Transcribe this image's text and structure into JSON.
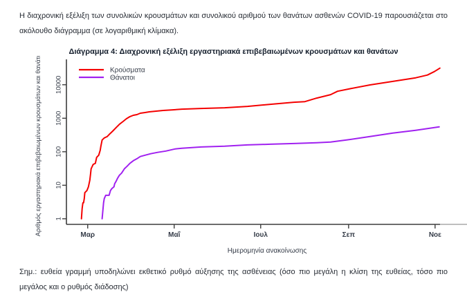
{
  "document": {
    "intro_paragraph": "Η διαχρονική εξέλιξη των συνολικών κρουσμάτων και συνολικού αριθμού των θανάτων ασθενών COVID-19 παρουσιάζεται στο ακόλουθο διάγραμμα (σε λογαριθμική κλίμακα).",
    "figure_title": "Διάγραμμα 4: Διαχρονική εξέλιξη εργαστηριακά επιβεβαιωμένων κρουσμάτων και θανάτων",
    "footnote": "Σημ.: ευθεία γραμμή υποδηλώνει εκθετικό ρυθμό αύξησης της ασθένειας (όσο πιο μεγάλη η κλίση της ευθείας, τόσο πιο μεγάλος και ο ρυθμός διάδοσης)"
  },
  "chart_data": {
    "type": "line",
    "y_scale": "log10",
    "xlabel": "Ημερομηνία ανακοίνωσης",
    "ylabel": "Αριθμός εργαστηριακά επιβεβαιωμένων κρουσμάτων και θανάτων",
    "x_unit": "days_since_1_Mar_2020",
    "xlim": [
      -15,
      268
    ],
    "ylim": [
      0.68,
      52000
    ],
    "grid": false,
    "legend_position": "top-left",
    "x_ticks": [
      {
        "d": 0,
        "label": "Μαρ"
      },
      {
        "d": 61,
        "label": "Μαΐ"
      },
      {
        "d": 122,
        "label": "Ιουλ"
      },
      {
        "d": 184,
        "label": "Σεπ"
      },
      {
        "d": 245,
        "label": "Νοε"
      }
    ],
    "y_ticks": [
      1,
      10,
      100,
      1000,
      10000
    ],
    "colors": {
      "cases": "#f40000",
      "deaths": "#a020f0",
      "axis": "#3c3c3c",
      "axis_tail": "#a8a8a8",
      "chart_text": "#343b47"
    },
    "series": [
      {
        "id": "cases",
        "name": "Κρούσματα",
        "color": "#f40000",
        "points": [
          [
            -4.4,
            1
          ],
          [
            -3.9,
            2
          ],
          [
            -3.4,
            3
          ],
          [
            -2.9,
            3
          ],
          [
            -2.4,
            4
          ],
          [
            -2,
            6
          ],
          [
            -0.5,
            7
          ],
          [
            0.5,
            9
          ],
          [
            1.5,
            14
          ],
          [
            2,
            21
          ],
          [
            2.4,
            31
          ],
          [
            3.9,
            42
          ],
          [
            5.4,
            45
          ],
          [
            6.3,
            68
          ],
          [
            7.8,
            79
          ],
          [
            8.8,
            110
          ],
          [
            9.3,
            146
          ],
          [
            10.2,
            224
          ],
          [
            11.7,
            258
          ],
          [
            13.7,
            283
          ],
          [
            15.1,
            326
          ],
          [
            17.6,
            412
          ],
          [
            20,
            523
          ],
          [
            22.4,
            663
          ],
          [
            24.9,
            800
          ],
          [
            27.3,
            966
          ],
          [
            29.8,
            1117
          ],
          [
            32.2,
            1228
          ],
          [
            34.7,
            1287
          ],
          [
            37.1,
            1415
          ],
          [
            40.5,
            1482
          ],
          [
            43.4,
            1553
          ],
          [
            48.3,
            1627
          ],
          [
            53.2,
            1705
          ],
          [
            60,
            1786
          ],
          [
            66.4,
            1872
          ],
          [
            80,
            1961
          ],
          [
            96.6,
            2055
          ],
          [
            112.7,
            2256
          ],
          [
            128.8,
            2600
          ],
          [
            145.4,
            3000
          ],
          [
            153.2,
            3140
          ],
          [
            161.5,
            3990
          ],
          [
            171.3,
            5050
          ],
          [
            176.2,
            6400
          ],
          [
            186,
            7740
          ],
          [
            199.1,
            9890
          ],
          [
            215.2,
            12600
          ],
          [
            231.3,
            16100
          ],
          [
            239.6,
            19500
          ],
          [
            244.5,
            24700
          ],
          [
            248.4,
            31300
          ]
        ]
      },
      {
        "id": "deaths",
        "name": "Θάνατοι",
        "color": "#a020f0",
        "points": [
          [
            10.2,
            1
          ],
          [
            11.2,
            3
          ],
          [
            11.7,
            4
          ],
          [
            12.7,
            5
          ],
          [
            15.1,
            5
          ],
          [
            16.1,
            7
          ],
          [
            17.1,
            8
          ],
          [
            18.5,
            9
          ],
          [
            19,
            11
          ],
          [
            20,
            13
          ],
          [
            21,
            16
          ],
          [
            22.4,
            20
          ],
          [
            23.9,
            23
          ],
          [
            25.9,
            31
          ],
          [
            27.8,
            37
          ],
          [
            29.8,
            45
          ],
          [
            32.2,
            54
          ],
          [
            34.7,
            62
          ],
          [
            37.1,
            72
          ],
          [
            40.5,
            79
          ],
          [
            44.4,
            87
          ],
          [
            49.3,
            96
          ],
          [
            55.1,
            105
          ],
          [
            61.5,
            121
          ],
          [
            66.4,
            127
          ],
          [
            80,
            139
          ],
          [
            96.6,
            146
          ],
          [
            112.7,
            160
          ],
          [
            128.8,
            168
          ],
          [
            145.4,
            176
          ],
          [
            161.5,
            185
          ],
          [
            171.3,
            194
          ],
          [
            182.5,
            224
          ],
          [
            199.1,
            284
          ],
          [
            215.2,
            360
          ],
          [
            231.3,
            437
          ],
          [
            247.9,
            552
          ]
        ]
      }
    ]
  }
}
